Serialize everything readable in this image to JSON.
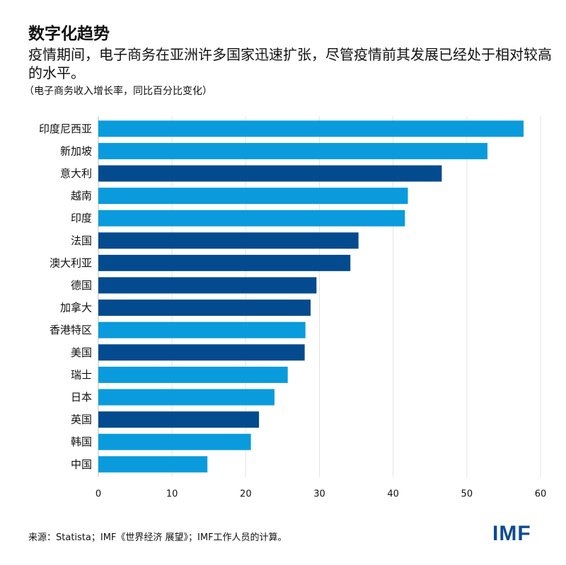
{
  "header": {
    "title": "数字化趋势",
    "subtitle": "疫情期间，电子商务在亚洲许多国家迅速扩张，尽管疫情前其发展已经处于相对较高的水平。",
    "note": "（电子商务收入增长率，同比百分比变化）"
  },
  "footer": {
    "source": "来源：Statista；IMF《世界经济 展望》；IMF工作人员的计算。",
    "logo": "IMF"
  },
  "colors": {
    "light": "#0a9bdd",
    "dark": "#034b8e",
    "grid": "#e2e2e2"
  },
  "chart_data": {
    "type": "bar",
    "orientation": "horizontal",
    "categories": [
      "印度尼西亚",
      "新加坡",
      "意大利",
      "越南",
      "印度",
      "法国",
      "澳大利亚",
      "德国",
      "加拿大",
      "香港特区",
      "美国",
      "瑞士",
      "日本",
      "英国",
      "韩国",
      "中国"
    ],
    "values": [
      57.7,
      52.8,
      46.6,
      42.0,
      41.6,
      35.3,
      34.2,
      29.6,
      28.8,
      28.1,
      28.0,
      25.7,
      23.9,
      21.8,
      20.7,
      14.8
    ],
    "color_group": [
      "light",
      "light",
      "dark",
      "light",
      "light",
      "dark",
      "dark",
      "dark",
      "dark",
      "light",
      "dark",
      "light",
      "light",
      "dark",
      "light",
      "light"
    ],
    "xlim": [
      0,
      60
    ],
    "xticks": [
      0,
      10,
      20,
      30,
      40,
      50,
      60
    ],
    "grid": true
  }
}
